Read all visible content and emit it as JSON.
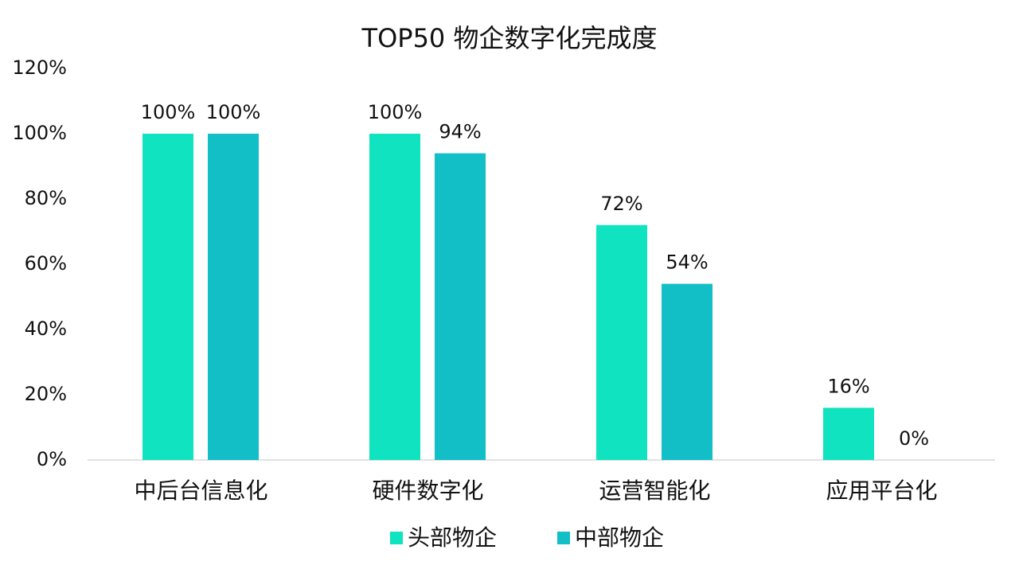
{
  "chart_data": {
    "type": "bar",
    "title": "TOP50 物企数字化完成度",
    "categories": [
      "中后台信息化",
      "硬件数字化",
      "运营智能化",
      "应用平台化"
    ],
    "series": [
      {
        "name": "头部物企",
        "color": "#0fe3bf",
        "values": [
          100,
          100,
          72,
          16
        ],
        "value_labels": [
          "100%",
          "100%",
          "72%",
          "16%"
        ]
      },
      {
        "name": "中部物企",
        "color": "#12bfc6",
        "values": [
          100,
          94,
          54,
          0
        ],
        "value_labels": [
          "100%",
          "94%",
          "54%",
          "0%"
        ]
      }
    ],
    "ylim": [
      0,
      120
    ],
    "yticks": [
      {
        "value": 0,
        "label": "0%"
      },
      {
        "value": 20,
        "label": "20%"
      },
      {
        "value": 40,
        "label": "40%"
      },
      {
        "value": 60,
        "label": "60%"
      },
      {
        "value": 80,
        "label": "80%"
      },
      {
        "value": 100,
        "label": "100%"
      },
      {
        "value": 120,
        "label": "120%"
      }
    ],
    "grid": false,
    "legend": "bottom"
  }
}
